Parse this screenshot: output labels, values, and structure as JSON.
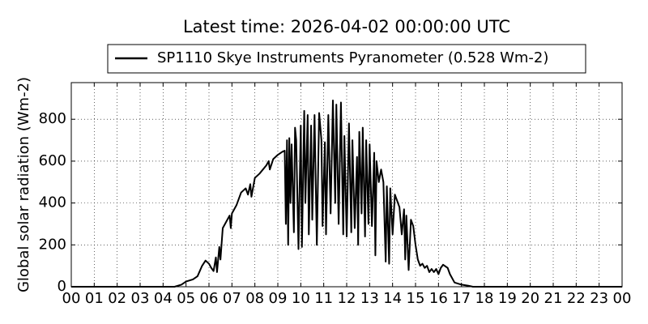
{
  "chart_data": {
    "type": "line",
    "title": "Latest time: 2026-04-02 00:00:00 UTC",
    "y_label": "Global solar radiation (Wm-2)",
    "x": [
      0,
      4.5,
      4.8,
      5.0,
      5.3,
      5.5,
      5.7,
      5.85,
      6.0,
      6.1,
      6.2,
      6.3,
      6.35,
      6.45,
      6.5,
      6.6,
      6.8,
      6.9,
      6.95,
      7.0,
      7.2,
      7.4,
      7.6,
      7.7,
      7.8,
      7.85,
      8.0,
      8.2,
      8.5,
      8.6,
      8.65,
      8.8,
      9.0,
      9.2,
      9.3,
      9.35,
      9.4,
      9.45,
      9.5,
      9.55,
      9.6,
      9.7,
      9.75,
      9.8,
      9.9,
      10.0,
      10.05,
      10.15,
      10.2,
      10.3,
      10.35,
      10.45,
      10.5,
      10.6,
      10.7,
      10.8,
      10.9,
      10.95,
      11.05,
      11.1,
      11.2,
      11.3,
      11.4,
      11.5,
      11.55,
      11.65,
      11.75,
      11.85,
      11.9,
      12.0,
      12.1,
      12.2,
      12.25,
      12.35,
      12.45,
      12.5,
      12.55,
      12.65,
      12.7,
      12.8,
      12.85,
      12.95,
      13.0,
      13.1,
      13.2,
      13.25,
      13.3,
      13.4,
      13.5,
      13.6,
      13.7,
      13.75,
      13.85,
      13.9,
      14.0,
      14.1,
      14.3,
      14.4,
      14.5,
      14.55,
      14.6,
      14.7,
      14.8,
      14.9,
      15.0,
      15.1,
      15.2,
      15.3,
      15.4,
      15.5,
      15.6,
      15.7,
      15.8,
      15.9,
      16.0,
      16.1,
      16.2,
      16.4,
      16.5,
      16.7,
      17.0,
      17.3,
      17.5,
      24
    ],
    "series": [
      {
        "name": "SP1110 Skye Instruments Pyranometer (0.528 Wm-2)",
        "color": "#000000",
        "values": [
          0,
          0,
          10,
          25,
          35,
          50,
          100,
          125,
          110,
          90,
          75,
          140,
          70,
          190,
          130,
          280,
          320,
          340,
          280,
          350,
          390,
          450,
          470,
          440,
          490,
          430,
          520,
          540,
          580,
          600,
          560,
          610,
          630,
          645,
          650,
          300,
          700,
          200,
          710,
          400,
          680,
          260,
          760,
          700,
          180,
          770,
          190,
          840,
          400,
          820,
          250,
          770,
          320,
          820,
          200,
          830,
          700,
          290,
          690,
          250,
          820,
          350,
          890,
          400,
          870,
          300,
          880,
          250,
          720,
          240,
          780,
          260,
          700,
          280,
          620,
          200,
          740,
          350,
          760,
          240,
          700,
          300,
          680,
          290,
          640,
          150,
          600,
          500,
          560,
          500,
          120,
          480,
          110,
          470,
          250,
          440,
          380,
          250,
          370,
          130,
          340,
          80,
          320,
          290,
          200,
          130,
          100,
          110,
          90,
          100,
          70,
          85,
          70,
          85,
          60,
          90,
          105,
          90,
          60,
          20,
          10,
          5,
          0,
          0
        ]
      }
    ],
    "xlim": [
      0,
      24
    ],
    "xticks": [
      {
        "value": 0,
        "label": "00"
      },
      {
        "value": 1,
        "label": "01"
      },
      {
        "value": 2,
        "label": "02"
      },
      {
        "value": 3,
        "label": "03"
      },
      {
        "value": 4,
        "label": "04"
      },
      {
        "value": 5,
        "label": "05"
      },
      {
        "value": 6,
        "label": "06"
      },
      {
        "value": 7,
        "label": "07"
      },
      {
        "value": 8,
        "label": "08"
      },
      {
        "value": 9,
        "label": "09"
      },
      {
        "value": 10,
        "label": "10"
      },
      {
        "value": 11,
        "label": "11"
      },
      {
        "value": 12,
        "label": "12"
      },
      {
        "value": 13,
        "label": "13"
      },
      {
        "value": 14,
        "label": "14"
      },
      {
        "value": 15,
        "label": "15"
      },
      {
        "value": 16,
        "label": "16"
      },
      {
        "value": 17,
        "label": "17"
      },
      {
        "value": 18,
        "label": "18"
      },
      {
        "value": 19,
        "label": "19"
      },
      {
        "value": 20,
        "label": "20"
      },
      {
        "value": 21,
        "label": "21"
      },
      {
        "value": 22,
        "label": "22"
      },
      {
        "value": 23,
        "label": "23"
      },
      {
        "value": 24,
        "label": "00"
      }
    ],
    "ylim": [
      0,
      975
    ],
    "yticks": [
      0,
      200,
      400,
      600,
      800
    ],
    "grid": true
  }
}
